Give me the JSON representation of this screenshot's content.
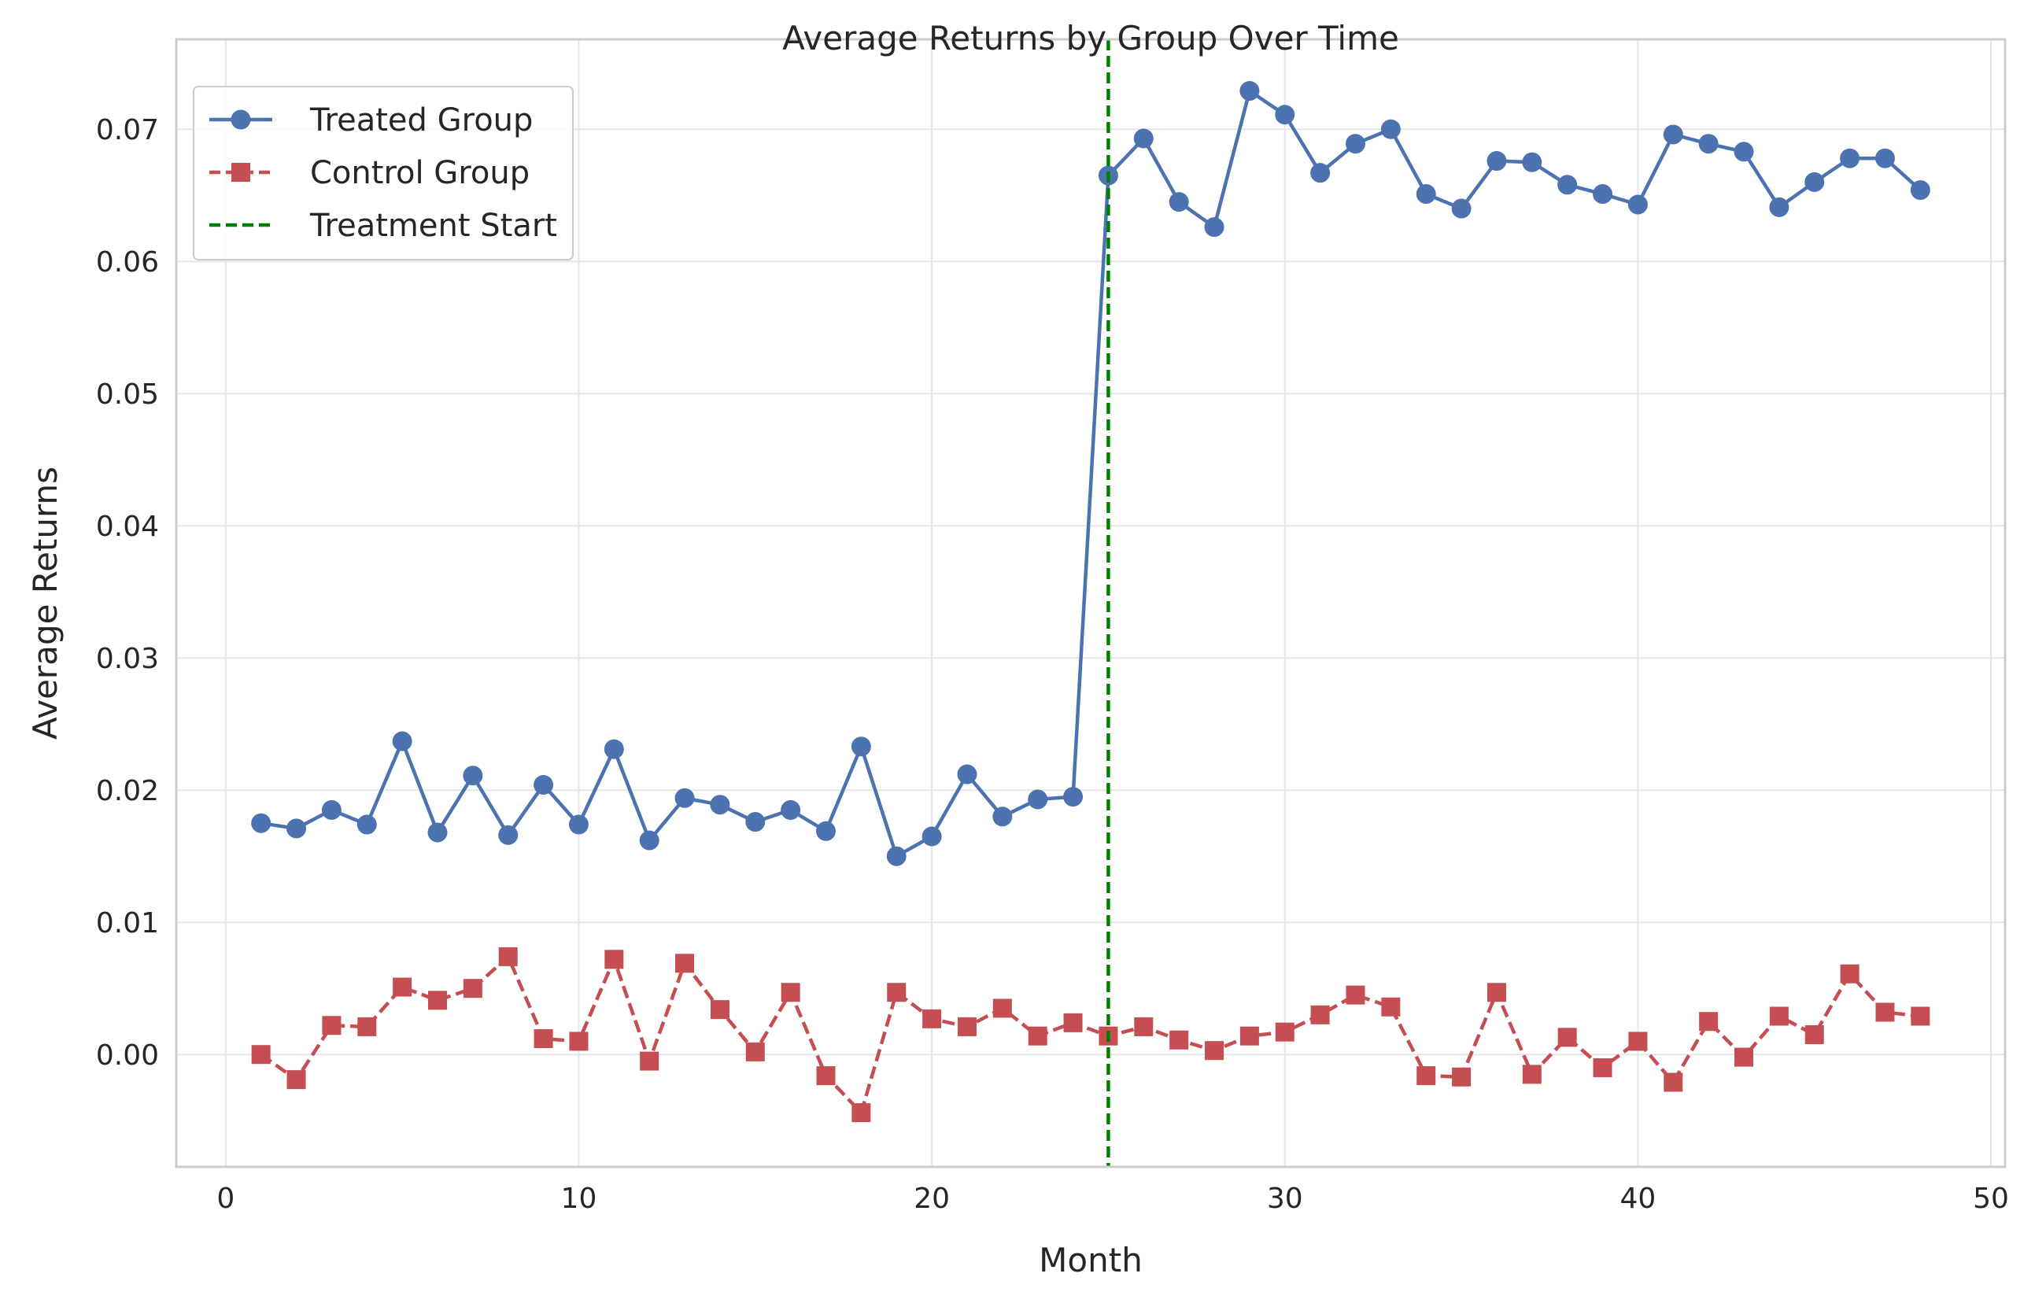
{
  "chart_data": {
    "type": "line",
    "title": "Average Returns by Group Over Time",
    "xlabel": "Month",
    "ylabel": "Average Returns",
    "xlim": [
      -1.4,
      50.4
    ],
    "ylim": [
      -0.0085,
      0.0768
    ],
    "xticks": [
      0,
      10,
      20,
      30,
      40,
      50
    ],
    "xtick_labels": [
      "0",
      "10",
      "20",
      "30",
      "40",
      "50"
    ],
    "yticks": [
      0.0,
      0.01,
      0.02,
      0.03,
      0.04,
      0.05,
      0.06,
      0.07
    ],
    "ytick_labels": [
      "0.00",
      "0.01",
      "0.02",
      "0.03",
      "0.04",
      "0.05",
      "0.06",
      "0.07"
    ],
    "grid": true,
    "legend_position": "top-left",
    "x": [
      1,
      2,
      3,
      4,
      5,
      6,
      7,
      8,
      9,
      10,
      11,
      12,
      13,
      14,
      15,
      16,
      17,
      18,
      19,
      20,
      21,
      22,
      23,
      24,
      25,
      26,
      27,
      28,
      29,
      30,
      31,
      32,
      33,
      34,
      35,
      36,
      37,
      38,
      39,
      40,
      41,
      42,
      43,
      44,
      45,
      46,
      47,
      48
    ],
    "series": [
      {
        "name": "Treated Group",
        "color": "#4c72b0",
        "marker": "circle",
        "line_style": "solid",
        "values": [
          0.0175,
          0.0171,
          0.0185,
          0.0174,
          0.0237,
          0.0168,
          0.0211,
          0.0166,
          0.0204,
          0.0174,
          0.0231,
          0.0162,
          0.0194,
          0.0189,
          0.0176,
          0.0185,
          0.0169,
          0.0233,
          0.015,
          0.0165,
          0.0212,
          0.018,
          0.0193,
          0.0195,
          0.0665,
          0.0693,
          0.0645,
          0.0626,
          0.0729,
          0.0711,
          0.0667,
          0.0689,
          0.07,
          0.0651,
          0.064,
          0.0676,
          0.0675,
          0.0658,
          0.0651,
          0.0643,
          0.0696,
          0.0689,
          0.0683,
          0.0641,
          0.066,
          0.0678,
          0.0678,
          0.0654
        ]
      },
      {
        "name": "Control Group",
        "color": "#c44e52",
        "marker": "square",
        "line_style": "dashed",
        "values": [
          0.0,
          -0.0019,
          0.0022,
          0.0021,
          0.0051,
          0.0041,
          0.005,
          0.0074,
          0.0012,
          0.001,
          0.0072,
          -0.0005,
          0.0069,
          0.0034,
          0.0002,
          0.0047,
          -0.0016,
          -0.0044,
          0.0047,
          0.0027,
          0.0021,
          0.0035,
          0.0014,
          0.0024,
          0.0014,
          0.0021,
          0.0011,
          0.0003,
          0.0014,
          0.0017,
          0.003,
          0.0045,
          0.0036,
          -0.0016,
          -0.0017,
          0.0047,
          -0.0015,
          0.0013,
          -0.001,
          0.001,
          -0.0021,
          0.0025,
          -0.0002,
          0.0029,
          0.0015,
          0.0061,
          0.0032,
          0.0029
        ]
      }
    ],
    "annotations": [
      {
        "type": "vline",
        "x": 25,
        "name": "Treatment Start",
        "color": "#008000",
        "line_style": "dashed"
      }
    ]
  }
}
